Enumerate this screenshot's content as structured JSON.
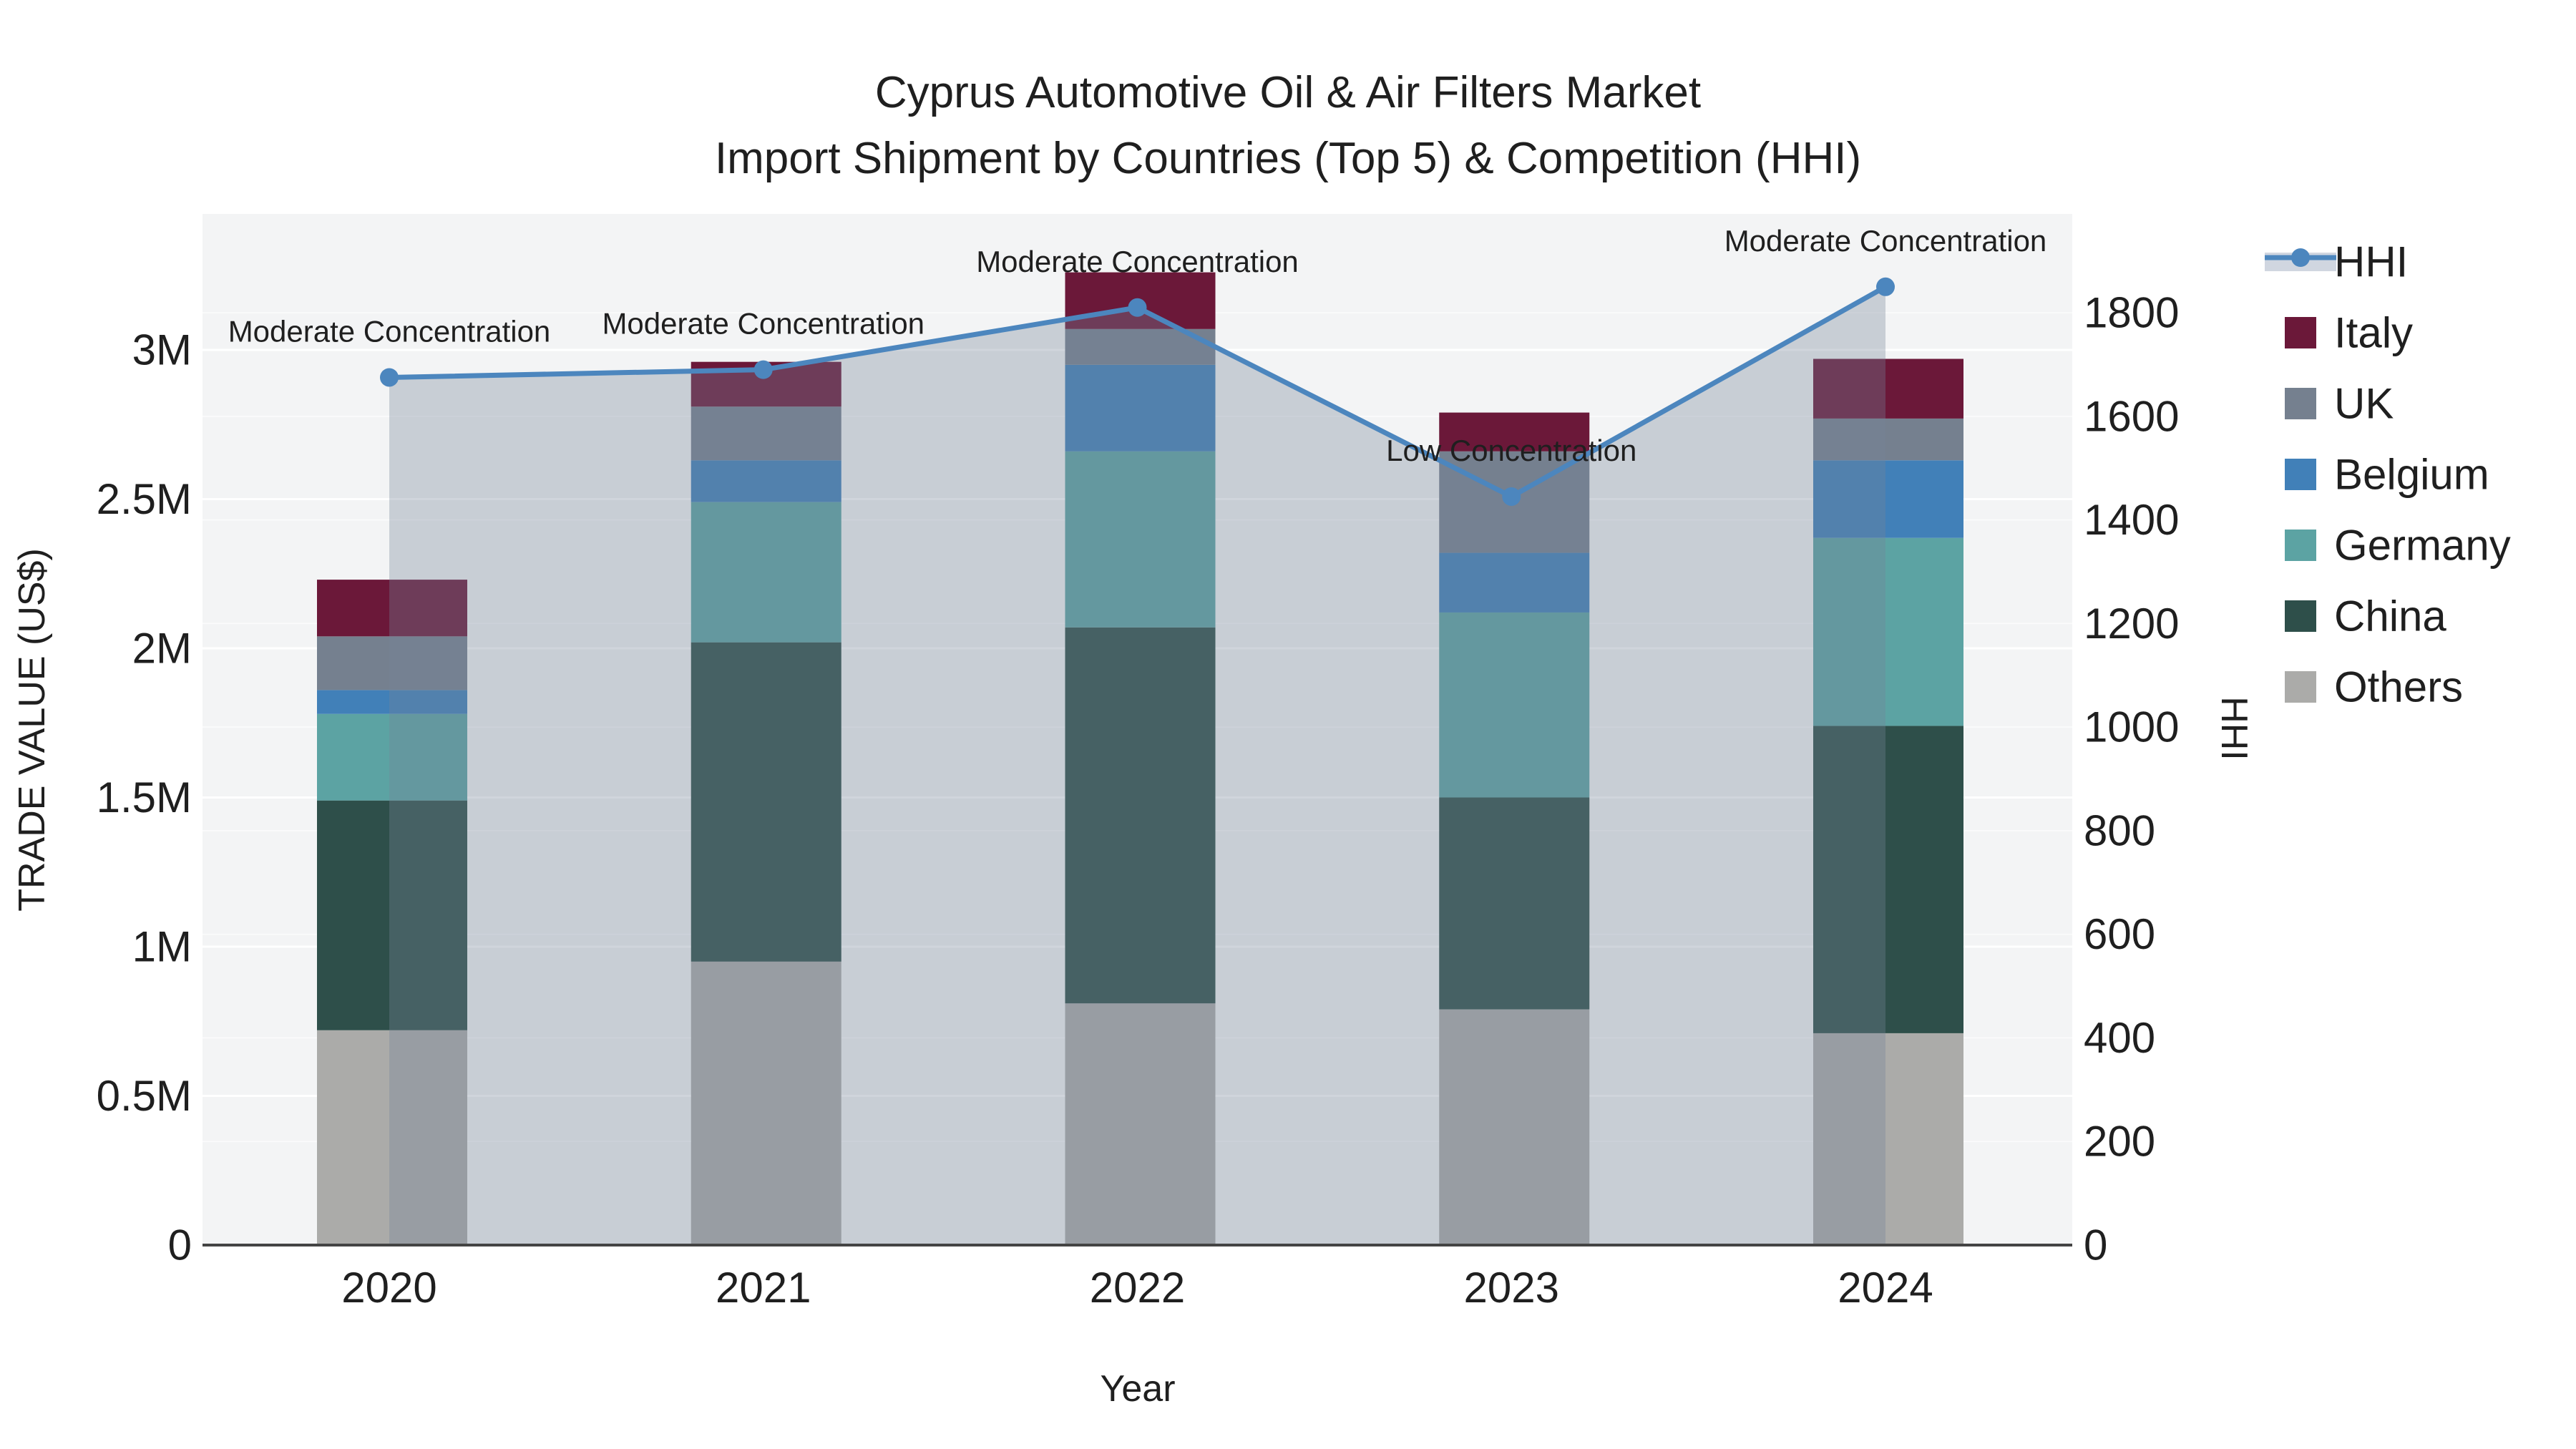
{
  "title": {
    "line1": "Cyprus Automotive Oil & Air Filters Market",
    "line2": "Import Shipment by Countries (Top 5) & Competition (HHI)"
  },
  "axes": {
    "left": {
      "title": "TRADE VALUE (US$)",
      "tick_labels": [
        "0",
        "0.5M",
        "1M",
        "1.5M",
        "2M",
        "2.5M",
        "3M"
      ],
      "tick_values_usd": [
        0,
        500000,
        1000000,
        1500000,
        2000000,
        2500000,
        3000000
      ]
    },
    "right": {
      "title": "HHI",
      "tick_labels": [
        "0",
        "200",
        "400",
        "600",
        "800",
        "1000",
        "1200",
        "1400",
        "1600",
        "1800"
      ],
      "tick_values": [
        0,
        200,
        400,
        600,
        800,
        1000,
        1200,
        1400,
        1600,
        1800
      ]
    },
    "x": {
      "title": "Year",
      "categories": [
        "2020",
        "2021",
        "2022",
        "2023",
        "2024"
      ]
    }
  },
  "legend": {
    "items": [
      {
        "label": "HHI",
        "type": "line",
        "color": "#4C86BE",
        "area_color": "#D0D6E0"
      },
      {
        "label": "Italy",
        "type": "square",
        "color": "#6B1839"
      },
      {
        "label": "UK",
        "type": "square",
        "color": "#75808F"
      },
      {
        "label": "Belgium",
        "type": "square",
        "color": "#4180B8"
      },
      {
        "label": "Germany",
        "type": "square",
        "color": "#5CA3A3"
      },
      {
        "label": "China",
        "type": "square",
        "color": "#2E4F4A"
      },
      {
        "label": "Others",
        "type": "square",
        "color": "#ABABA9"
      }
    ]
  },
  "chart_data": {
    "type": "combo: stacked bar (left axis) + line with area fill (right axis)",
    "categories": [
      "2020",
      "2021",
      "2022",
      "2023",
      "2024"
    ],
    "value_unit": "US$",
    "left_axis_range_usd": [
      0,
      3450000
    ],
    "right_axis_range_hhi": [
      0,
      1990
    ],
    "grid": "on",
    "legend_position": "right",
    "stack_order_bottom_to_top": [
      "Others",
      "China",
      "Germany",
      "Belgium",
      "UK",
      "Italy"
    ],
    "series": [
      {
        "name": "Others",
        "color": "#ABABA9",
        "values": [
          720000,
          950000,
          810000,
          790000,
          710000
        ]
      },
      {
        "name": "China",
        "color": "#2E4F4A",
        "values": [
          770000,
          1070000,
          1260000,
          710000,
          1030000
        ]
      },
      {
        "name": "Germany",
        "color": "#5CA3A3",
        "values": [
          290000,
          470000,
          590000,
          620000,
          630000
        ]
      },
      {
        "name": "Belgium",
        "color": "#4180B8",
        "values": [
          80000,
          140000,
          290000,
          200000,
          260000
        ]
      },
      {
        "name": "UK",
        "color": "#75808F",
        "values": [
          180000,
          180000,
          120000,
          340000,
          140000
        ]
      },
      {
        "name": "Italy",
        "color": "#6B1839",
        "values": [
          190000,
          150000,
          190000,
          130000,
          200000
        ]
      }
    ],
    "stack_totals_usd": [
      2230000,
      2960000,
      3260000,
      2790000,
      2970000
    ],
    "hhi_line": {
      "name": "HHI",
      "axis": "right",
      "color": "#4C86BE",
      "fill_color": "rgba(118,133,152,0.34)",
      "values": [
        1675,
        1690,
        1810,
        1445,
        1850
      ]
    },
    "annotations": [
      {
        "category": "2020",
        "text": "Moderate Concentration"
      },
      {
        "category": "2021",
        "text": "Moderate Concentration"
      },
      {
        "category": "2022",
        "text": "Moderate Concentration"
      },
      {
        "category": "2023",
        "text": "Low Concentration"
      },
      {
        "category": "2024",
        "text": "Moderate Concentration"
      }
    ]
  },
  "colors": {
    "plot_background": "#F3F4F5",
    "gridline": "#FFFFFF",
    "axis_line": "#444444",
    "text": "#1F1F1F"
  }
}
